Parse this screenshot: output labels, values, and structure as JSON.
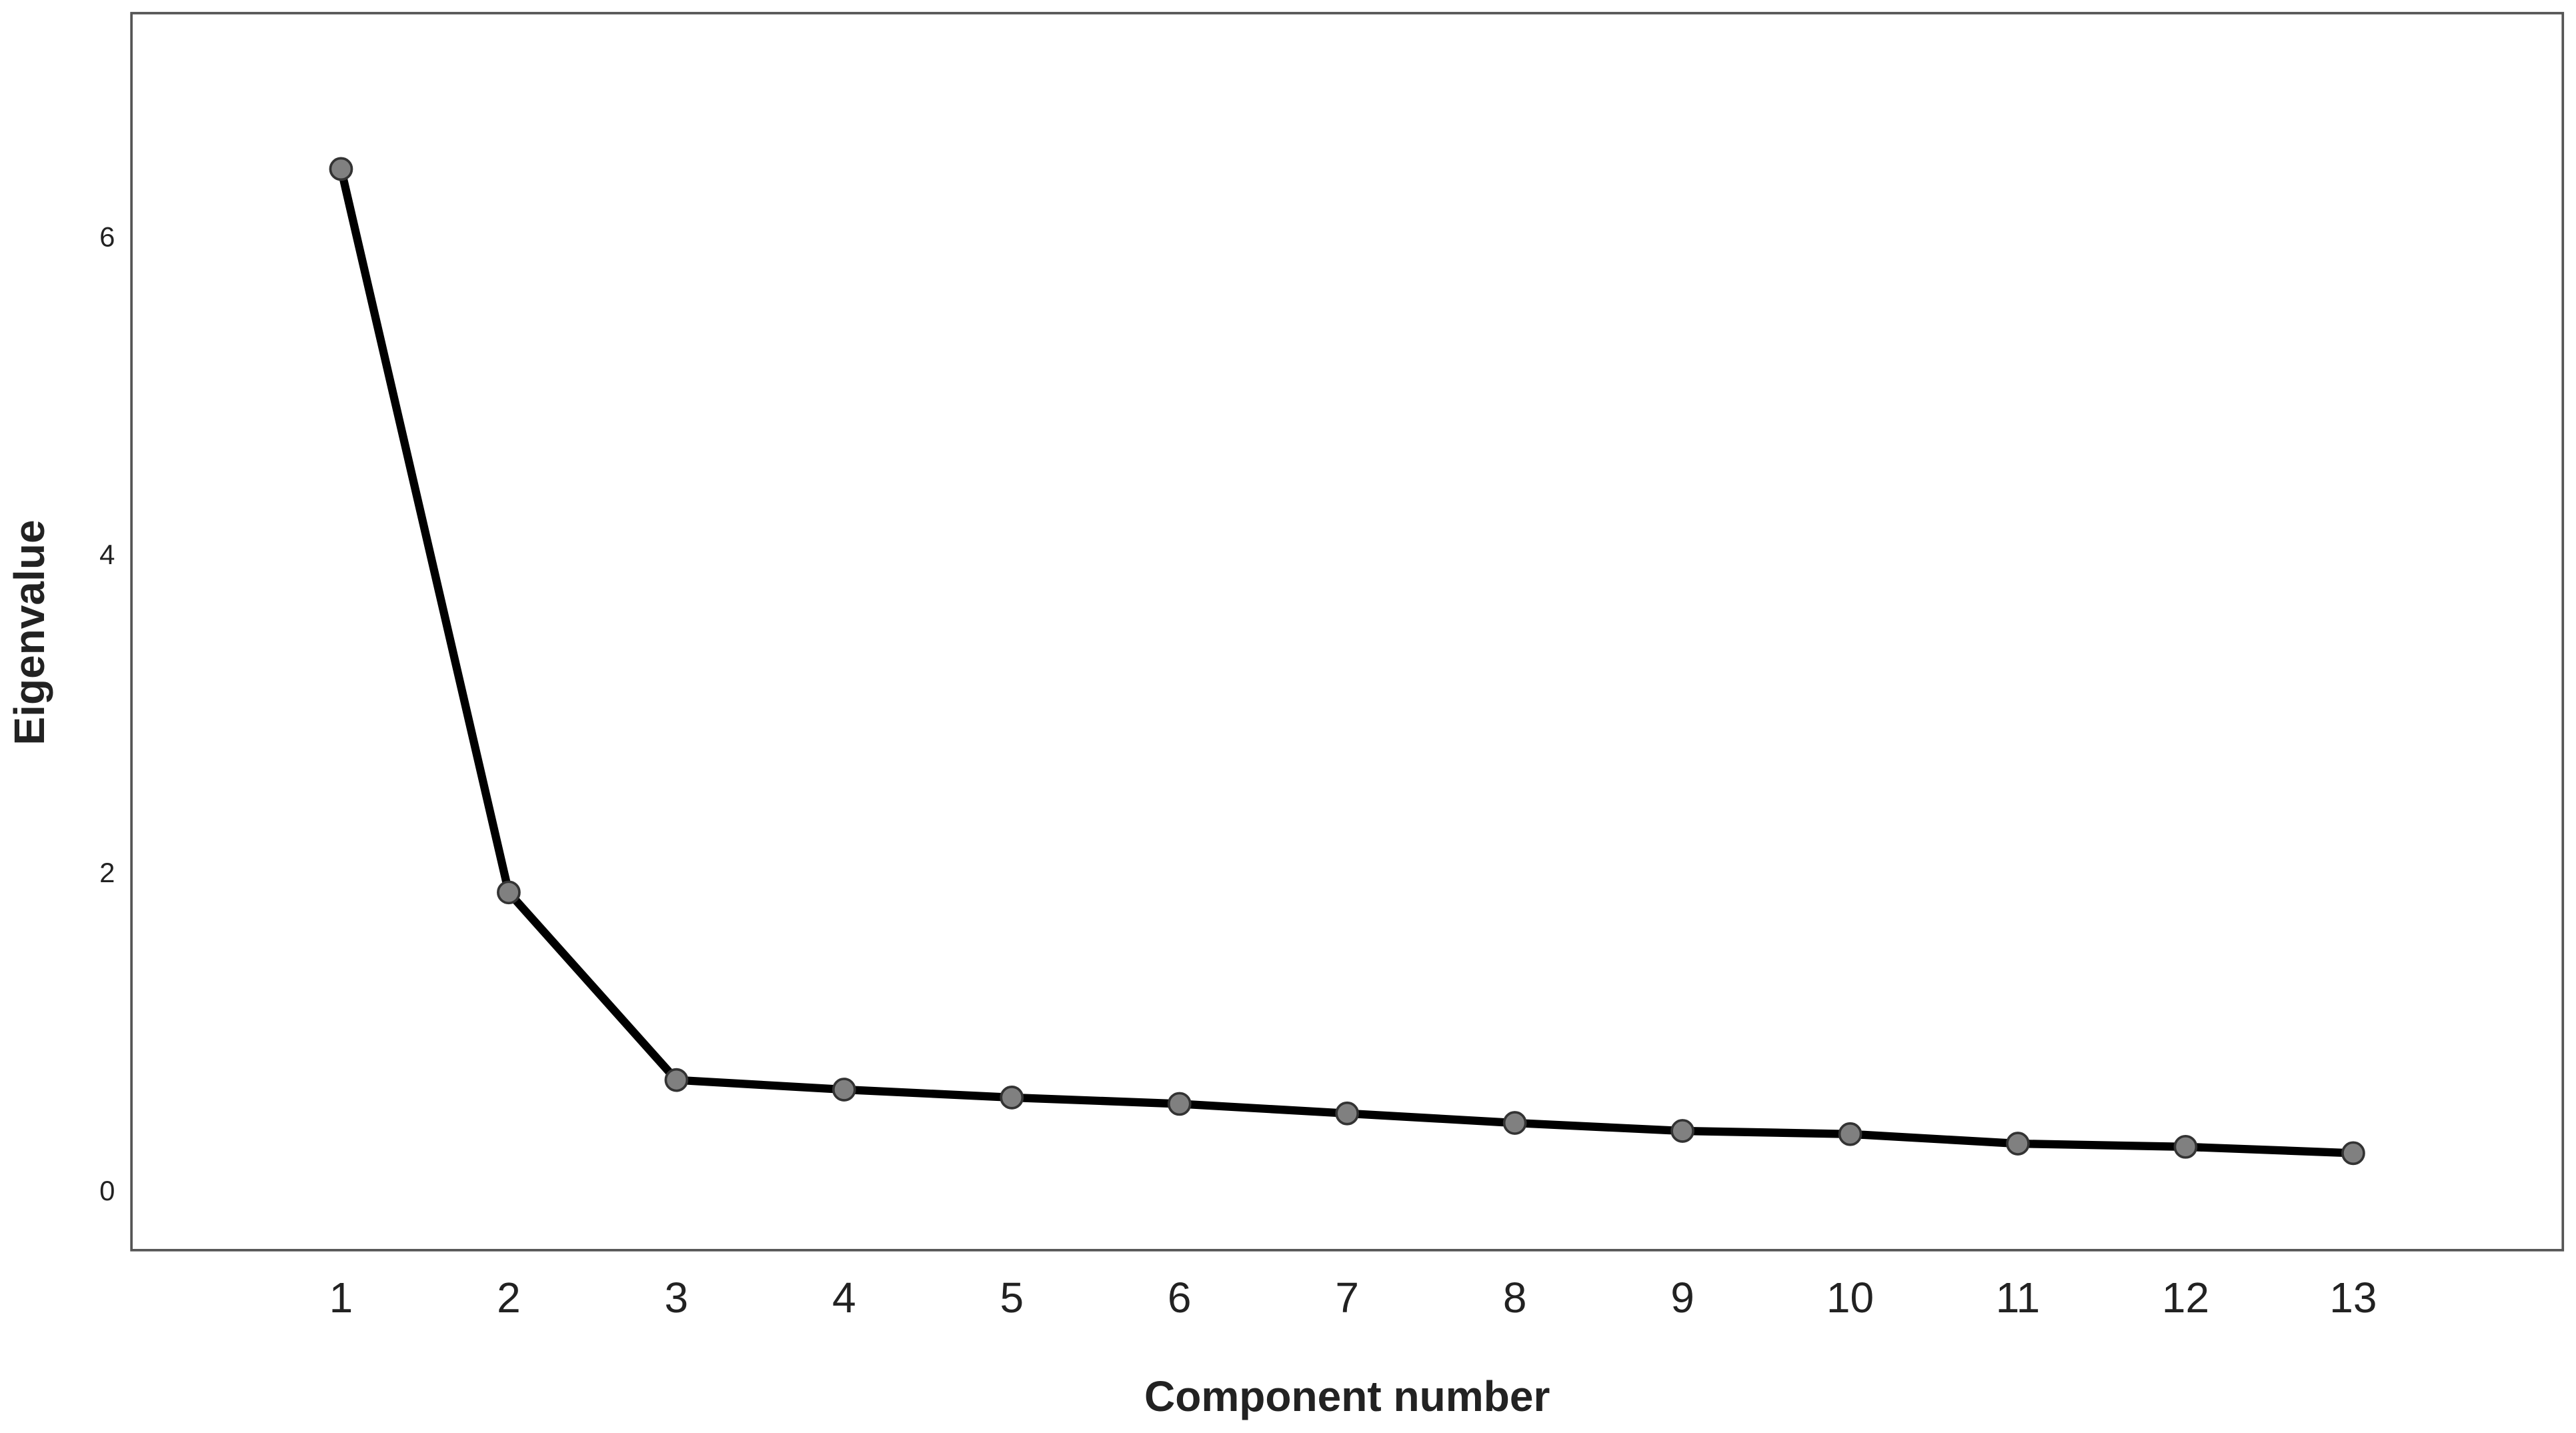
{
  "chart_data": {
    "type": "line",
    "x_label": "Component number",
    "y_label": "Eigenvalue",
    "x": [
      1,
      2,
      3,
      4,
      5,
      6,
      7,
      8,
      9,
      10,
      11,
      12,
      13
    ],
    "values": [
      6.44,
      1.89,
      0.71,
      0.65,
      0.6,
      0.56,
      0.5,
      0.44,
      0.39,
      0.37,
      0.31,
      0.29,
      0.25
    ],
    "color": "#000000",
    "marker_color": "#808080",
    "xlim": [
      -0.25,
      14.25
    ],
    "xticks": [
      1,
      2,
      3,
      4,
      5,
      6,
      7,
      8,
      9,
      10,
      11,
      12,
      13
    ],
    "ylim": [
      -0.36,
      7.42
    ],
    "yticks": [
      0,
      2,
      4,
      6
    ],
    "grid": false
  }
}
